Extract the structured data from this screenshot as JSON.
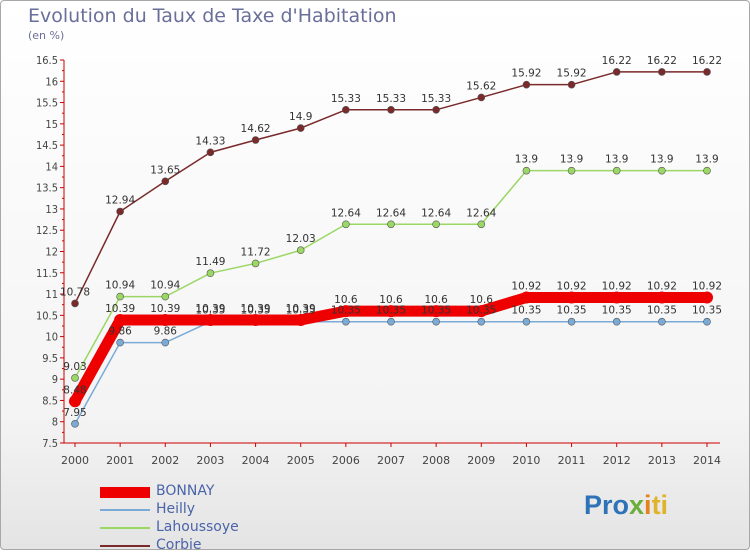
{
  "title": "Evolution du Taux de Taxe d'Habitation",
  "unit": "(en %)",
  "logo": {
    "text_parts": [
      "Pro",
      "x",
      "i",
      "ti"
    ],
    "colors": [
      "#2e73b8",
      "#6cae3c",
      "#e5821e",
      "#e0b42a"
    ]
  },
  "chart_data": {
    "type": "line",
    "title": "Evolution du Taux de Taxe d'Habitation",
    "ylabel": "(en %)",
    "xlabel": "",
    "x": [
      "2000",
      "2001",
      "2002",
      "2003",
      "2004",
      "2005",
      "2006",
      "2007",
      "2008",
      "2009",
      "2010",
      "2011",
      "2012",
      "2013",
      "2014"
    ],
    "ylim": [
      7.5,
      16.5
    ],
    "yticks": [
      "7.5",
      "8",
      "8.5",
      "9",
      "9.5",
      "10",
      "10.5",
      "11",
      "11.5",
      "12",
      "12.5",
      "13",
      "13.5",
      "14",
      "14.5",
      "15",
      "15.5",
      "16",
      "16.5"
    ],
    "grid": false,
    "legend_position": "bottom-left",
    "series": [
      {
        "name": "Corbie",
        "color": "#7a2a2a",
        "values": [
          10.78,
          12.94,
          13.65,
          14.33,
          14.62,
          14.9,
          15.33,
          15.33,
          15.33,
          15.62,
          15.92,
          15.92,
          16.22,
          16.22,
          16.22
        ],
        "labels": [
          "10.78",
          "12.94",
          "13.65",
          "14.33",
          "14.62",
          "14.9",
          "15.33",
          "15.33",
          "15.33",
          "15.62",
          "15.92",
          "15.92",
          "16.22",
          "16.22",
          "16.22"
        ]
      },
      {
        "name": "Lahoussoye",
        "color": "#9ad765",
        "values": [
          9.03,
          10.94,
          10.94,
          11.49,
          11.72,
          12.03,
          12.64,
          12.64,
          12.64,
          12.64,
          13.9,
          13.9,
          13.9,
          13.9,
          13.9
        ],
        "labels": [
          "9.03",
          "10.94",
          "10.94",
          "11.49",
          "11.72",
          "12.03",
          "12.64",
          "12.64",
          "12.64",
          "12.64",
          "13.9",
          "13.9",
          "13.9",
          "13.9",
          "13.9"
        ]
      },
      {
        "name": "Heilly",
        "color": "#7aaad6",
        "values": [
          7.95,
          9.86,
          9.86,
          10.35,
          10.35,
          10.35,
          10.35,
          10.35,
          10.35,
          10.35,
          10.35,
          10.35,
          10.35,
          10.35,
          10.35
        ],
        "labels": [
          "7.95",
          "9.86",
          "9.86",
          "10.35",
          "10.35",
          "10.35",
          "10.35",
          "10.35",
          "10.35",
          "10.35",
          "10.35",
          "10.35",
          "10.35",
          "10.35",
          "10.35"
        ]
      },
      {
        "name": "BONNAY",
        "color": "#ee0000",
        "values": [
          8.48,
          10.39,
          10.39,
          10.39,
          10.39,
          10.39,
          10.6,
          10.6,
          10.6,
          10.6,
          10.92,
          10.92,
          10.92,
          10.92,
          10.92
        ],
        "labels": [
          "8.48",
          "10.39",
          "10.39",
          "10.39",
          "10.39",
          "10.39",
          "10.6",
          "10.6",
          "10.6",
          "10.6",
          "10.92",
          "10.92",
          "10.92",
          "10.92",
          "10.92"
        ]
      }
    ],
    "legend": [
      "BONNAY",
      "Heilly",
      "Lahoussoye",
      "Corbie"
    ]
  }
}
